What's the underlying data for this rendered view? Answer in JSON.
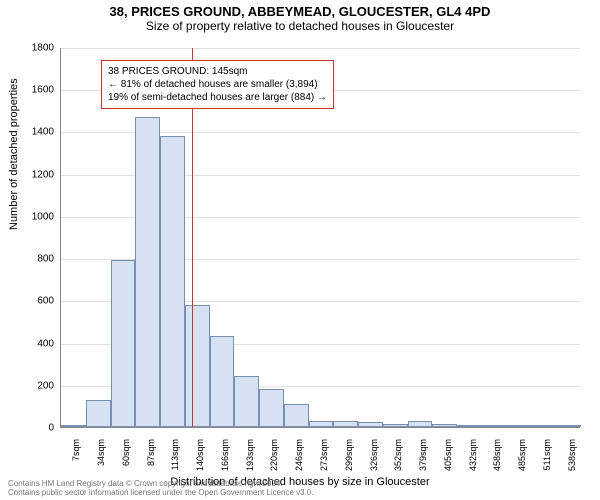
{
  "title_line1": "38, PRICES GROUND, ABBEYMEAD, GLOUCESTER, GL4 4PD",
  "title_line2": "Size of property relative to detached houses in Gloucester",
  "ylabel": "Number of detached properties",
  "xlabel": "Distribution of detached houses by size in Gloucester",
  "chart": {
    "type": "histogram",
    "ylim_max": 1800,
    "ytick_step": 200,
    "bar_fill": "#d6e2f3",
    "bar_border": "#7a8fb0",
    "grid_color": "#e0e0e0",
    "vline_color": "#cc3333",
    "vline_x_index": 5.3,
    "x_labels": [
      "7sqm",
      "34sqm",
      "60sqm",
      "87sqm",
      "113sqm",
      "140sqm",
      "166sqm",
      "193sqm",
      "220sqm",
      "246sqm",
      "273sqm",
      "299sqm",
      "326sqm",
      "352sqm",
      "379sqm",
      "405sqm",
      "432sqm",
      "458sqm",
      "485sqm",
      "511sqm",
      "538sqm"
    ],
    "values": [
      5,
      130,
      790,
      1470,
      1380,
      580,
      430,
      240,
      180,
      110,
      30,
      30,
      25,
      15,
      30,
      15,
      5,
      5,
      5,
      5,
      5
    ]
  },
  "annotation": {
    "line1": "38 PRICES GROUND: 145sqm",
    "line2": "← 81% of detached houses are smaller (3,894)",
    "line3": "19% of semi-detached houses are larger (884) →"
  },
  "footer_line1": "Contains HM Land Registry data © Crown copyright and database right 2024.",
  "footer_line2": "Contains public sector information licensed under the Open Government Licence v3.0."
}
